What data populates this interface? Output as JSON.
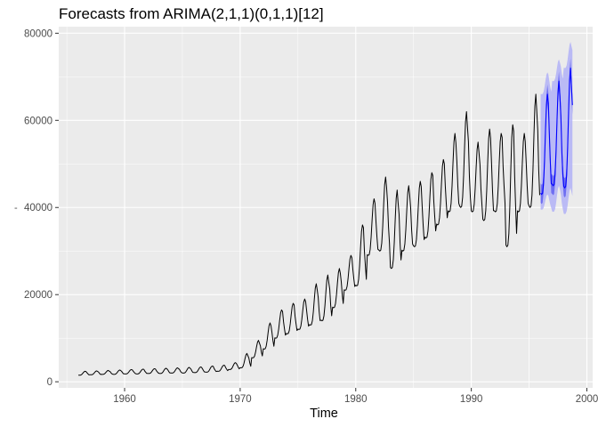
{
  "chart_data": {
    "type": "line",
    "title": "Forecasts from ARIMA(2,1,1)(0,1,1)[12]",
    "xlabel": "Time",
    "ylabel": "",
    "xlim": [
      1954.3,
      2000.5
    ],
    "ylim": [
      -1400,
      81500
    ],
    "x_ticks": [
      1960,
      1970,
      1980,
      1990,
      2000
    ],
    "x_tick_labels": [
      "1960",
      "1970",
      "1980",
      "1990",
      "2000"
    ],
    "y_ticks": [
      0,
      20000,
      40000,
      60000,
      80000
    ],
    "y_tick_labels": [
      "0",
      "20000",
      "40000",
      "60000",
      "80000"
    ],
    "stray_label": "-",
    "grid": true,
    "legend": "none",
    "colors": {
      "panel": "#ebebeb",
      "grid_major": "#ffffff",
      "history_line": "#000000",
      "forecast_line": "#0000ff",
      "interval_80": "#5b5bf0",
      "interval_95": "#b1b1f7"
    },
    "series": [
      {
        "name": "history",
        "frequency": 12,
        "start": 1956,
        "yearly_points": [
          {
            "year": 1956,
            "low": 1500,
            "high": 2400
          },
          {
            "year": 1957,
            "low": 1600,
            "high": 2500
          },
          {
            "year": 1958,
            "low": 1700,
            "high": 2600
          },
          {
            "year": 1959,
            "low": 1700,
            "high": 2700
          },
          {
            "year": 1960,
            "low": 1800,
            "high": 2800
          },
          {
            "year": 1961,
            "low": 1800,
            "high": 2900
          },
          {
            "year": 1962,
            "low": 1900,
            "high": 3000
          },
          {
            "year": 1963,
            "low": 1900,
            "high": 3100
          },
          {
            "year": 1964,
            "low": 2000,
            "high": 3200
          },
          {
            "year": 1965,
            "low": 2000,
            "high": 3300
          },
          {
            "year": 1966,
            "low": 2100,
            "high": 3400
          },
          {
            "year": 1967,
            "low": 2200,
            "high": 3600
          },
          {
            "year": 1968,
            "low": 2400,
            "high": 3800
          },
          {
            "year": 1969,
            "low": 2800,
            "high": 4400
          },
          {
            "year": 1970,
            "low": 3200,
            "high": 6500
          },
          {
            "year": 1971,
            "low": 5500,
            "high": 9500
          },
          {
            "year": 1972,
            "low": 7500,
            "high": 13500
          },
          {
            "year": 1973,
            "low": 10000,
            "high": 16500
          },
          {
            "year": 1974,
            "low": 11000,
            "high": 18000
          },
          {
            "year": 1975,
            "low": 12000,
            "high": 19000
          },
          {
            "year": 1976,
            "low": 13000,
            "high": 22500
          },
          {
            "year": 1977,
            "low": 14000,
            "high": 24500
          },
          {
            "year": 1978,
            "low": 17000,
            "high": 26000
          },
          {
            "year": 1979,
            "low": 21000,
            "high": 29000
          },
          {
            "year": 1980,
            "low": 22000,
            "high": 36000
          },
          {
            "year": 1981,
            "low": 29000,
            "high": 42000
          },
          {
            "year": 1982,
            "low": 30000,
            "high": 47000
          },
          {
            "year": 1983,
            "low": 26000,
            "high": 44000
          },
          {
            "year": 1984,
            "low": 30000,
            "high": 45000
          },
          {
            "year": 1985,
            "low": 31000,
            "high": 46000
          },
          {
            "year": 1986,
            "low": 33000,
            "high": 48000
          },
          {
            "year": 1987,
            "low": 36000,
            "high": 51000
          },
          {
            "year": 1988,
            "low": 39000,
            "high": 57000
          },
          {
            "year": 1989,
            "low": 40000,
            "high": 62000
          },
          {
            "year": 1990,
            "low": 39000,
            "high": 55000
          },
          {
            "year": 1991,
            "low": 37000,
            "high": 58000
          },
          {
            "year": 1992,
            "low": 39000,
            "high": 57000
          },
          {
            "year": 1993,
            "low": 31000,
            "high": 59000
          },
          {
            "year": 1994,
            "low": 39000,
            "high": 57000
          },
          {
            "year": 1995,
            "low": 40000,
            "high": 66000
          }
        ]
      },
      {
        "name": "forecast",
        "frequency": 12,
        "start": 1996,
        "yearly_points": [
          {
            "year": 1996,
            "low": 43000,
            "high": 66000,
            "lo95": 39500,
            "hi95": 71000
          },
          {
            "year": 1997,
            "low": 45000,
            "high": 69000,
            "lo95": 39000,
            "hi95": 74000
          },
          {
            "year": 1998,
            "low": 44500,
            "high": 72000,
            "lo95": 38500,
            "hi95": 78000
          }
        ],
        "end": 1998.75
      }
    ]
  }
}
